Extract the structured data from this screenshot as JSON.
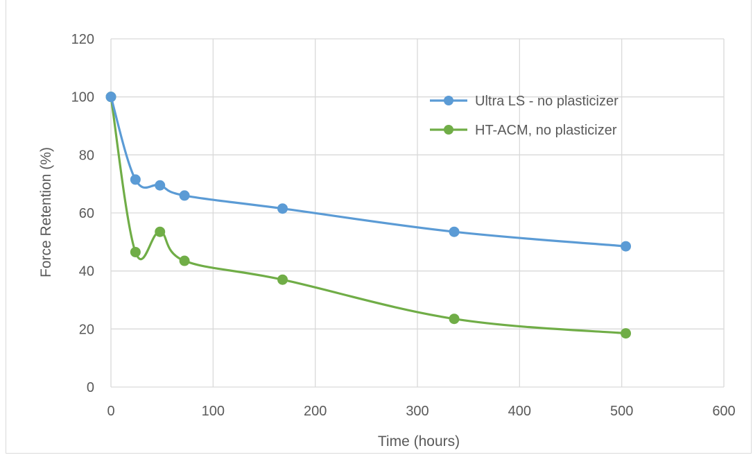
{
  "chart_data": {
    "type": "line",
    "title": "",
    "xlabel": "Time (hours)",
    "ylabel": "Force Retention (%)",
    "xlim": [
      0,
      600
    ],
    "ylim": [
      0,
      120
    ],
    "x_ticks": [
      0,
      100,
      200,
      300,
      400,
      500,
      600
    ],
    "y_ticks": [
      0,
      20,
      40,
      60,
      80,
      100,
      120
    ],
    "grid": true,
    "legend_position": "top-right",
    "series": [
      {
        "name": "Ultra LS - no plasticizer",
        "color": "#5b9bd5",
        "x": [
          0,
          24,
          48,
          72,
          168,
          336,
          504
        ],
        "y": [
          100,
          71.5,
          69.5,
          66,
          61.5,
          53.5,
          48.5
        ]
      },
      {
        "name": "HT-ACM, no plasticizer",
        "color": "#70ad47",
        "x": [
          0,
          24,
          48,
          72,
          168,
          336,
          504
        ],
        "y": [
          100,
          46.5,
          53.5,
          43.5,
          37,
          23.5,
          18.5
        ]
      }
    ]
  }
}
